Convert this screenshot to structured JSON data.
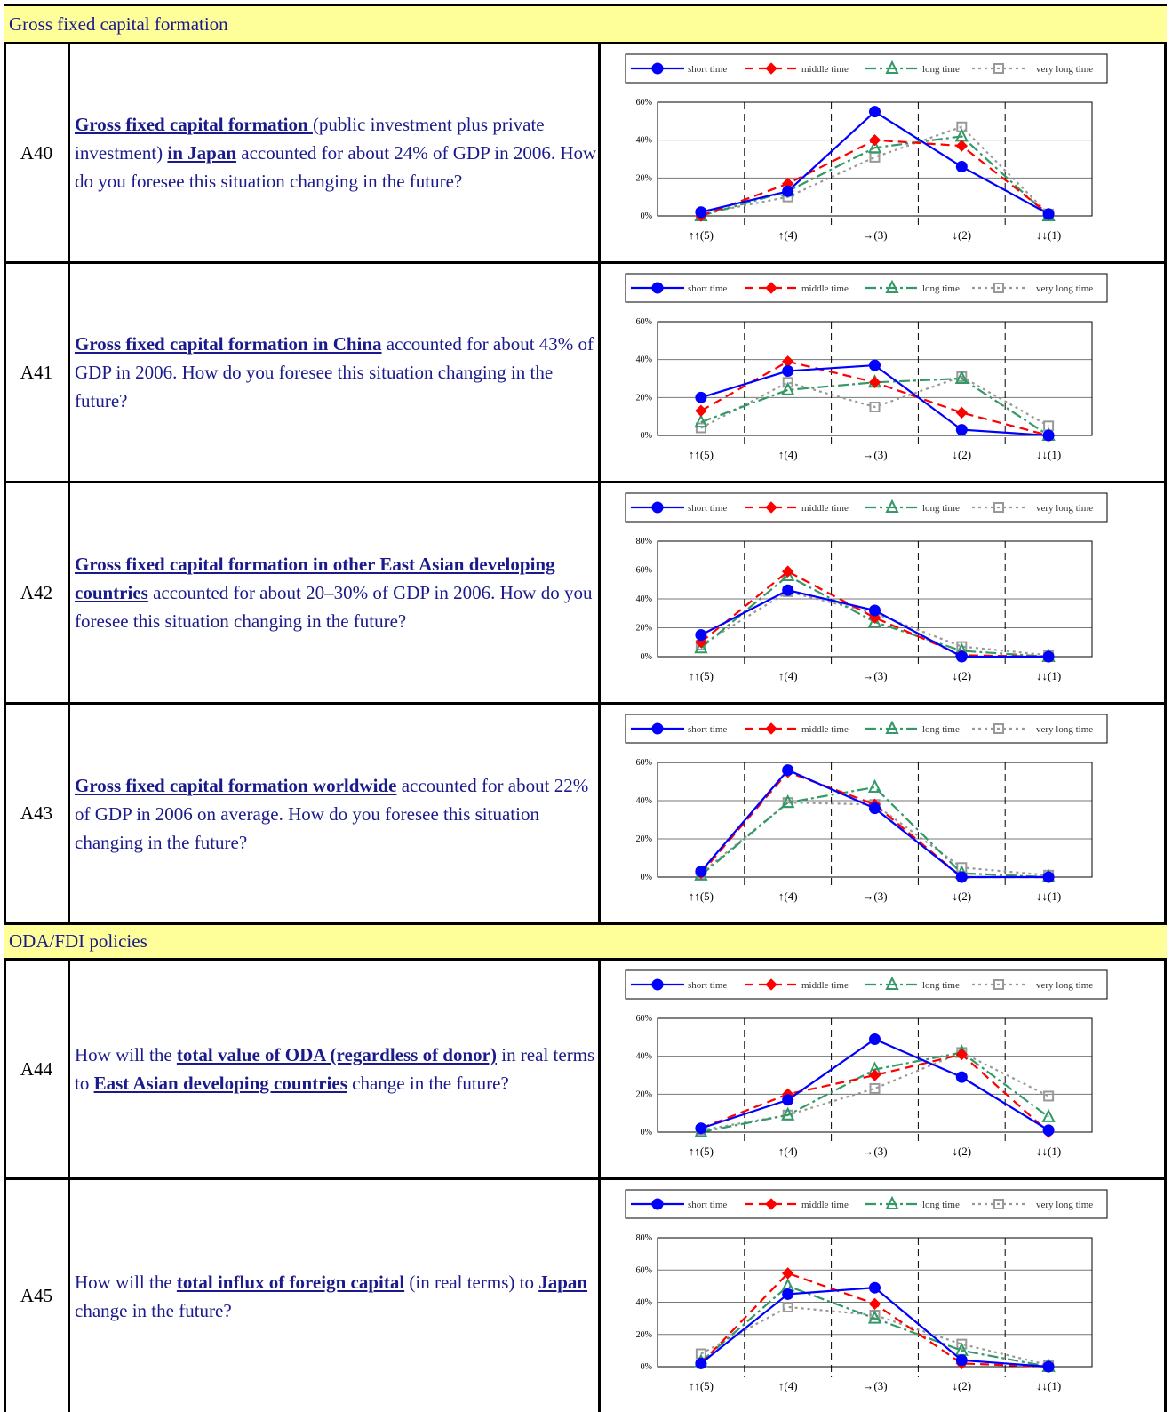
{
  "sections": [
    {
      "title": "Gross fixed capital formation"
    },
    {
      "title": "ODA/FDI policies"
    }
  ],
  "legend_labels": [
    "short time",
    "middle time",
    "long time",
    "very long time"
  ],
  "x_categories": [
    "↑↑(5)",
    "↑(4)",
    "→(3)",
    "↓(2)",
    "↓↓(1)"
  ],
  "rows": [
    {
      "id": "A40",
      "question": [
        {
          "t": "Gross fixed capital formation ",
          "b": true
        },
        {
          "t": "(public investment plus private investment) ",
          "b": false
        },
        {
          "t": "in Japan",
          "b": true
        },
        {
          "t": " accounted for about 24% of GDP in 2006. How do you foresee this situation changing in the future?",
          "b": false
        }
      ]
    },
    {
      "id": "A41",
      "question": [
        {
          "t": "Gross fixed capital formation in China",
          "b": true
        },
        {
          "t": " accounted for about 43% of GDP in 2006. How do you foresee this situation changing in the future?",
          "b": false
        }
      ]
    },
    {
      "id": "A42",
      "question": [
        {
          "t": "Gross fixed capital formation in other East Asian developing countries",
          "b": true
        },
        {
          "t": " accounted for about 20–30% of GDP in 2006. How do you foresee this situation changing in the future?",
          "b": false
        }
      ]
    },
    {
      "id": "A43",
      "question": [
        {
          "t": "Gross fixed capital formation worldwide",
          "b": true
        },
        {
          "t": " accounted for about 22% of GDP in 2006 on average. How do you foresee this situation changing in the future?",
          "b": false
        }
      ]
    },
    {
      "id": "A44",
      "question": [
        {
          "t": "How will the ",
          "b": false
        },
        {
          "t": "total value of ODA (regardless of donor)",
          "b": true
        },
        {
          "t": " in real terms to ",
          "b": false
        },
        {
          "t": "East Asian developing countries",
          "b": true
        },
        {
          "t": " change in the future?",
          "b": false
        }
      ]
    },
    {
      "id": "A45",
      "question": [
        {
          "t": "How will the ",
          "b": false
        },
        {
          "t": "total influx of foreign capital",
          "b": true
        },
        {
          "t": " (in real terms) to ",
          "b": false
        },
        {
          "t": "Japan",
          "b": true
        },
        {
          "t": " change in the future?",
          "b": false
        }
      ]
    }
  ],
  "colors": {
    "short": "#0000ff",
    "middle": "#ff0000",
    "long": "#339966",
    "very_long": "#999999",
    "header_bg": "#ffff99",
    "question_text": "#1a1a8c"
  },
  "chart_data": [
    {
      "type": "line",
      "row": "A40",
      "categories": [
        "↑↑(5)",
        "↑(4)",
        "→(3)",
        "↓(2)",
        "↓↓(1)"
      ],
      "ylim": [
        0,
        60
      ],
      "yticks": [
        "0%",
        "20%",
        "40%",
        "60%"
      ],
      "series": [
        {
          "name": "short time",
          "values": [
            2,
            13,
            55,
            26,
            1
          ]
        },
        {
          "name": "middle time",
          "values": [
            0,
            17,
            40,
            37,
            1
          ]
        },
        {
          "name": "long time",
          "values": [
            0,
            13,
            36,
            42,
            0
          ]
        },
        {
          "name": "very long time",
          "values": [
            1,
            10,
            31,
            47,
            1
          ]
        }
      ]
    },
    {
      "type": "line",
      "row": "A41",
      "categories": [
        "↑↑(5)",
        "↑(4)",
        "→(3)",
        "↓(2)",
        "↓↓(1)"
      ],
      "ylim": [
        0,
        60
      ],
      "yticks": [
        "0%",
        "20%",
        "40%",
        "60%"
      ],
      "series": [
        {
          "name": "short time",
          "values": [
            20,
            34,
            37,
            3,
            0
          ]
        },
        {
          "name": "middle time",
          "values": [
            13,
            39,
            28,
            12,
            0
          ]
        },
        {
          "name": "long time",
          "values": [
            7,
            24,
            28,
            30,
            0
          ]
        },
        {
          "name": "very long time",
          "values": [
            4,
            28,
            15,
            31,
            5
          ]
        }
      ]
    },
    {
      "type": "line",
      "row": "A42",
      "categories": [
        "↑↑(5)",
        "↑(4)",
        "→(3)",
        "↓(2)",
        "↓↓(1)"
      ],
      "ylim": [
        0,
        80
      ],
      "yticks": [
        "0%",
        "20%",
        "40%",
        "60%",
        "80%"
      ],
      "series": [
        {
          "name": "short time",
          "values": [
            15,
            46,
            32,
            0,
            0
          ]
        },
        {
          "name": "middle time",
          "values": [
            10,
            59,
            27,
            1,
            0
          ]
        },
        {
          "name": "long time",
          "values": [
            6,
            56,
            24,
            4,
            0
          ]
        },
        {
          "name": "very long time",
          "values": [
            8,
            45,
            30,
            7,
            1
          ]
        }
      ]
    },
    {
      "type": "line",
      "row": "A43",
      "categories": [
        "↑↑(5)",
        "↑(4)",
        "→(3)",
        "↓(2)",
        "↓↓(1)"
      ],
      "ylim": [
        0,
        60
      ],
      "yticks": [
        "0%",
        "20%",
        "40%",
        "60%"
      ],
      "series": [
        {
          "name": "short time",
          "values": [
            3,
            56,
            36,
            0,
            0
          ]
        },
        {
          "name": "middle time",
          "values": [
            2,
            55,
            38,
            0,
            0
          ]
        },
        {
          "name": "long time",
          "values": [
            1,
            39,
            47,
            2,
            0
          ]
        },
        {
          "name": "very long time",
          "values": [
            2,
            39,
            38,
            5,
            1
          ]
        }
      ]
    },
    {
      "type": "line",
      "row": "A44",
      "categories": [
        "↑↑(5)",
        "↑(4)",
        "→(3)",
        "↓(2)",
        "↓↓(1)"
      ],
      "ylim": [
        0,
        60
      ],
      "yticks": [
        "0%",
        "20%",
        "40%",
        "60%"
      ],
      "series": [
        {
          "name": "short time",
          "values": [
            2,
            17,
            49,
            29,
            1
          ]
        },
        {
          "name": "middle time",
          "values": [
            2,
            20,
            30,
            41,
            0
          ]
        },
        {
          "name": "long time",
          "values": [
            0,
            9,
            33,
            42,
            8
          ]
        },
        {
          "name": "very long time",
          "values": [
            1,
            9,
            23,
            42,
            19
          ]
        }
      ]
    },
    {
      "type": "line",
      "row": "A45",
      "categories": [
        "↑↑(5)",
        "↑(4)",
        "→(3)",
        "↓(2)",
        "↓↓(1)"
      ],
      "ylim": [
        0,
        80
      ],
      "yticks": [
        "0%",
        "20%",
        "40%",
        "60%",
        "80%"
      ],
      "series": [
        {
          "name": "short time",
          "values": [
            2,
            45,
            49,
            4,
            0
          ]
        },
        {
          "name": "middle time",
          "values": [
            2,
            58,
            39,
            2,
            0
          ]
        },
        {
          "name": "long time",
          "values": [
            3,
            50,
            30,
            10,
            0
          ]
        },
        {
          "name": "very long time",
          "values": [
            8,
            37,
            32,
            14,
            1
          ]
        }
      ]
    }
  ]
}
